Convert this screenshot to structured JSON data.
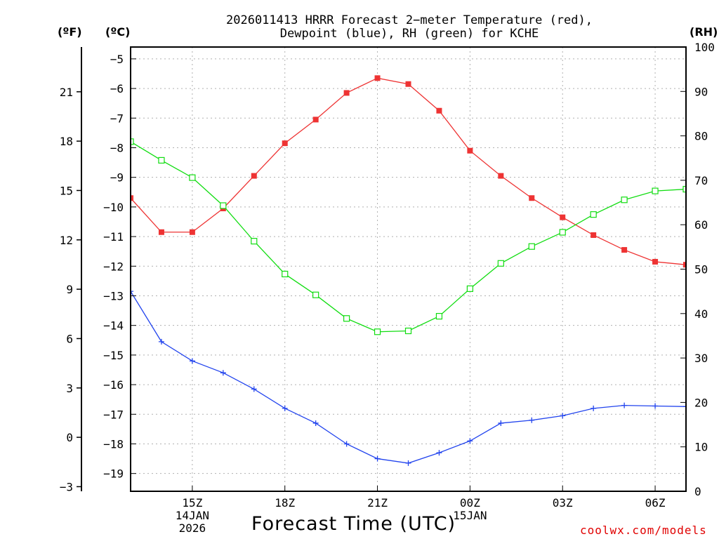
{
  "title_lines": [
    "2026011413 HRRR Forecast 2−meter Temperature (red),",
    "Dewpoint (blue), RH (green) for KCHE"
  ],
  "units": {
    "fahrenheit": "(ºF)",
    "celsius": "(ºC)",
    "rh": "(RH)"
  },
  "credit": "coolwx.com/models",
  "colors": {
    "temperature": "#ee3333",
    "dewpoint": "#2244ee",
    "rh": "#11dd11",
    "grid": "#b0b0b0"
  },
  "chart_data": {
    "type": "line",
    "xlabel": "Forecast Time (UTC)",
    "x_ticks": [
      {
        "hour": 15,
        "label": "15Z",
        "sublabels": [
          "14JAN",
          "2026"
        ]
      },
      {
        "hour": 18,
        "label": "18Z",
        "sublabels": []
      },
      {
        "hour": 21,
        "label": "21Z",
        "sublabels": []
      },
      {
        "hour": 24,
        "label": "00Z",
        "sublabels": [
          "15JAN"
        ]
      },
      {
        "hour": 27,
        "label": "03Z",
        "sublabels": []
      },
      {
        "hour": 30,
        "label": "06Z",
        "sublabels": []
      }
    ],
    "x_range": [
      13,
      31
    ],
    "hours": [
      13,
      14,
      15,
      16,
      17,
      18,
      19,
      20,
      21,
      22,
      23,
      24,
      25,
      26,
      27,
      28,
      29,
      30,
      31
    ],
    "celsius_axis": {
      "range": [
        -19.6,
        -4.6
      ],
      "ticks": [
        -19,
        -18,
        -17,
        -16,
        -15,
        -14,
        -13,
        -12,
        -11,
        -10,
        -9,
        -8,
        -7,
        -6,
        -5
      ]
    },
    "fahrenheit_axis": {
      "ticks": [
        -3,
        0,
        3,
        6,
        9,
        12,
        15,
        18,
        21
      ]
    },
    "rh_axis": {
      "range": [
        0,
        100
      ],
      "ticks": [
        0,
        10,
        20,
        30,
        40,
        50,
        60,
        70,
        80,
        90,
        100
      ]
    },
    "series": [
      {
        "name": "Temperature",
        "unit": "C",
        "axis": "celsius",
        "values": [
          -9.7,
          -10.85,
          -10.85,
          -10.05,
          -8.95,
          -7.85,
          -7.05,
          -6.15,
          -5.65,
          -5.85,
          -6.75,
          -8.1,
          -8.95,
          -9.7,
          -10.35,
          -10.95,
          -11.45,
          -11.85,
          -11.95
        ]
      },
      {
        "name": "Dewpoint",
        "unit": "C",
        "axis": "celsius",
        "values": [
          -12.85,
          -14.55,
          -15.2,
          -15.6,
          -16.15,
          -16.8,
          -17.3,
          -18.0,
          -18.5,
          -18.65,
          -18.3,
          -17.9,
          -17.3,
          -17.2,
          -17.05,
          -16.8,
          -16.7,
          -16.72,
          -16.74
        ]
      },
      {
        "name": "RH",
        "unit": "%",
        "axis": "rh",
        "values": [
          78.7,
          74.5,
          70.6,
          64.3,
          56.3,
          48.9,
          44.2,
          38.9,
          35.9,
          36.1,
          39.4,
          45.6,
          51.3,
          55.1,
          58.3,
          62.3,
          65.6,
          67.6,
          68.0
        ]
      }
    ]
  }
}
